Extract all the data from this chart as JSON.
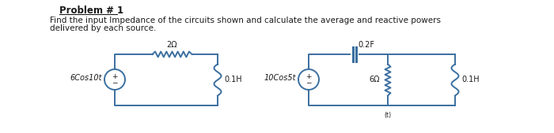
{
  "bg_color": "#ffffff",
  "title_text": "Problem # 1",
  "body_line1": "Find the input Impedance of the circuits shown and calculate the average and reactive powers",
  "body_line2": "delivered by each source.",
  "line_color": "#3a6fa0",
  "text_color": "#1a1a1a",
  "font_size_title": 8.5,
  "font_size_body": 7.5,
  "font_size_circuit": 7.0,
  "c1_src_label": "6Cos10t",
  "c1_res_label": "2Ω",
  "c1_ind_label": "0.1H",
  "c2_src_label": "10Cos5t",
  "c2_cap_label": "0.2F",
  "c2_res_label": "6Ω",
  "c2_ind_label": "0.1H"
}
